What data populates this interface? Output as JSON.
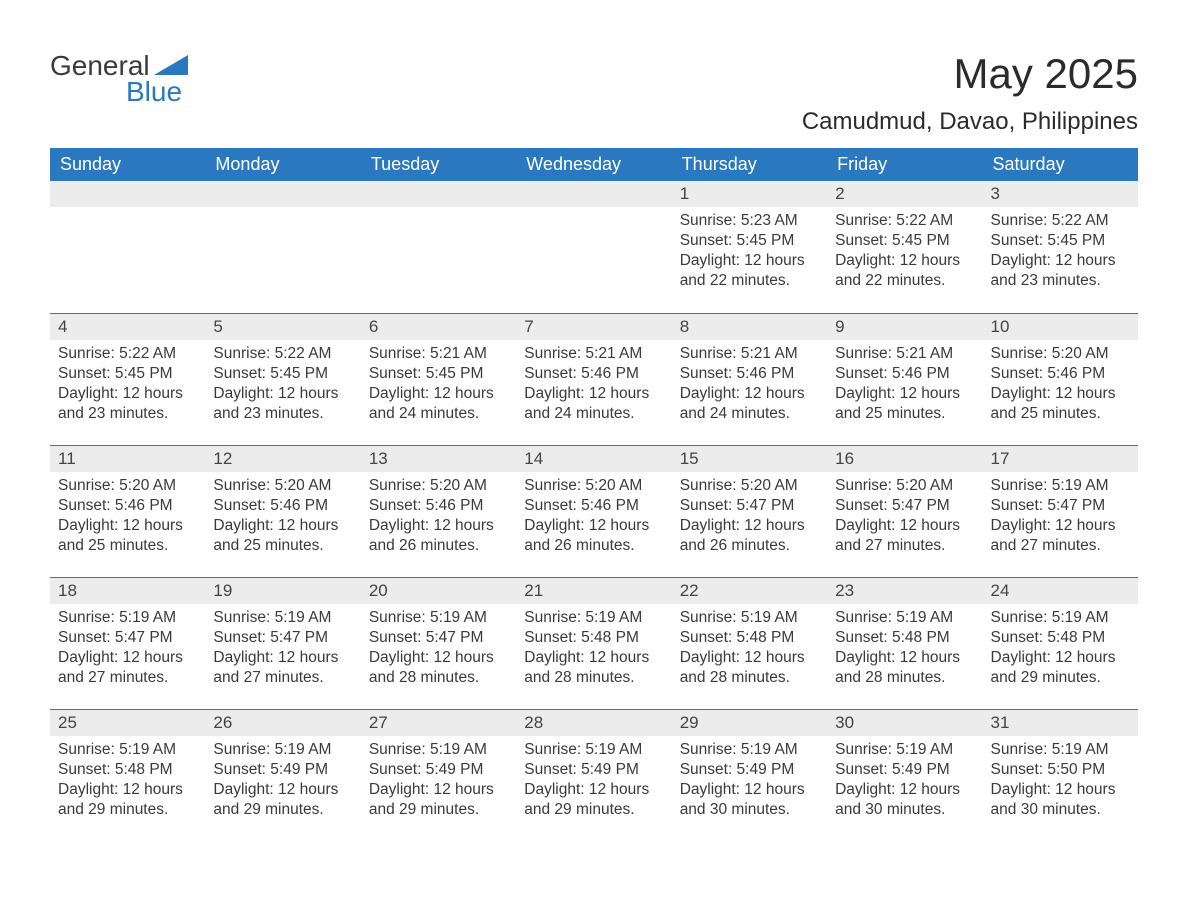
{
  "brand": {
    "word1": "General",
    "word2": "Blue",
    "accent_color": "#2a79c0"
  },
  "title": "May 2025",
  "location": "Camudmud, Davao, Philippines",
  "colors": {
    "header_bg": "#2a79c0",
    "header_text": "#ffffff",
    "daynum_bg": "#ececec",
    "text": "#3a3a3a",
    "row_border": "#2a79c0",
    "page_bg": "#ffffff"
  },
  "fonts": {
    "title_size_pt": 42,
    "location_size_pt": 24,
    "header_size_pt": 18,
    "body_size_pt": 15.5
  },
  "weekdays": [
    "Sunday",
    "Monday",
    "Tuesday",
    "Wednesday",
    "Thursday",
    "Friday",
    "Saturday"
  ],
  "weeks": [
    [
      {
        "blank": true
      },
      {
        "blank": true
      },
      {
        "blank": true
      },
      {
        "blank": true
      },
      {
        "n": "1",
        "sunrise": "Sunrise: 5:23 AM",
        "sunset": "Sunset: 5:45 PM",
        "daylight1": "Daylight: 12 hours",
        "daylight2": "and 22 minutes."
      },
      {
        "n": "2",
        "sunrise": "Sunrise: 5:22 AM",
        "sunset": "Sunset: 5:45 PM",
        "daylight1": "Daylight: 12 hours",
        "daylight2": "and 22 minutes."
      },
      {
        "n": "3",
        "sunrise": "Sunrise: 5:22 AM",
        "sunset": "Sunset: 5:45 PM",
        "daylight1": "Daylight: 12 hours",
        "daylight2": "and 23 minutes."
      }
    ],
    [
      {
        "n": "4",
        "sunrise": "Sunrise: 5:22 AM",
        "sunset": "Sunset: 5:45 PM",
        "daylight1": "Daylight: 12 hours",
        "daylight2": "and 23 minutes."
      },
      {
        "n": "5",
        "sunrise": "Sunrise: 5:22 AM",
        "sunset": "Sunset: 5:45 PM",
        "daylight1": "Daylight: 12 hours",
        "daylight2": "and 23 minutes."
      },
      {
        "n": "6",
        "sunrise": "Sunrise: 5:21 AM",
        "sunset": "Sunset: 5:45 PM",
        "daylight1": "Daylight: 12 hours",
        "daylight2": "and 24 minutes."
      },
      {
        "n": "7",
        "sunrise": "Sunrise: 5:21 AM",
        "sunset": "Sunset: 5:46 PM",
        "daylight1": "Daylight: 12 hours",
        "daylight2": "and 24 minutes."
      },
      {
        "n": "8",
        "sunrise": "Sunrise: 5:21 AM",
        "sunset": "Sunset: 5:46 PM",
        "daylight1": "Daylight: 12 hours",
        "daylight2": "and 24 minutes."
      },
      {
        "n": "9",
        "sunrise": "Sunrise: 5:21 AM",
        "sunset": "Sunset: 5:46 PM",
        "daylight1": "Daylight: 12 hours",
        "daylight2": "and 25 minutes."
      },
      {
        "n": "10",
        "sunrise": "Sunrise: 5:20 AM",
        "sunset": "Sunset: 5:46 PM",
        "daylight1": "Daylight: 12 hours",
        "daylight2": "and 25 minutes."
      }
    ],
    [
      {
        "n": "11",
        "sunrise": "Sunrise: 5:20 AM",
        "sunset": "Sunset: 5:46 PM",
        "daylight1": "Daylight: 12 hours",
        "daylight2": "and 25 minutes."
      },
      {
        "n": "12",
        "sunrise": "Sunrise: 5:20 AM",
        "sunset": "Sunset: 5:46 PM",
        "daylight1": "Daylight: 12 hours",
        "daylight2": "and 25 minutes."
      },
      {
        "n": "13",
        "sunrise": "Sunrise: 5:20 AM",
        "sunset": "Sunset: 5:46 PM",
        "daylight1": "Daylight: 12 hours",
        "daylight2": "and 26 minutes."
      },
      {
        "n": "14",
        "sunrise": "Sunrise: 5:20 AM",
        "sunset": "Sunset: 5:46 PM",
        "daylight1": "Daylight: 12 hours",
        "daylight2": "and 26 minutes."
      },
      {
        "n": "15",
        "sunrise": "Sunrise: 5:20 AM",
        "sunset": "Sunset: 5:47 PM",
        "daylight1": "Daylight: 12 hours",
        "daylight2": "and 26 minutes."
      },
      {
        "n": "16",
        "sunrise": "Sunrise: 5:20 AM",
        "sunset": "Sunset: 5:47 PM",
        "daylight1": "Daylight: 12 hours",
        "daylight2": "and 27 minutes."
      },
      {
        "n": "17",
        "sunrise": "Sunrise: 5:19 AM",
        "sunset": "Sunset: 5:47 PM",
        "daylight1": "Daylight: 12 hours",
        "daylight2": "and 27 minutes."
      }
    ],
    [
      {
        "n": "18",
        "sunrise": "Sunrise: 5:19 AM",
        "sunset": "Sunset: 5:47 PM",
        "daylight1": "Daylight: 12 hours",
        "daylight2": "and 27 minutes."
      },
      {
        "n": "19",
        "sunrise": "Sunrise: 5:19 AM",
        "sunset": "Sunset: 5:47 PM",
        "daylight1": "Daylight: 12 hours",
        "daylight2": "and 27 minutes."
      },
      {
        "n": "20",
        "sunrise": "Sunrise: 5:19 AM",
        "sunset": "Sunset: 5:47 PM",
        "daylight1": "Daylight: 12 hours",
        "daylight2": "and 28 minutes."
      },
      {
        "n": "21",
        "sunrise": "Sunrise: 5:19 AM",
        "sunset": "Sunset: 5:48 PM",
        "daylight1": "Daylight: 12 hours",
        "daylight2": "and 28 minutes."
      },
      {
        "n": "22",
        "sunrise": "Sunrise: 5:19 AM",
        "sunset": "Sunset: 5:48 PM",
        "daylight1": "Daylight: 12 hours",
        "daylight2": "and 28 minutes."
      },
      {
        "n": "23",
        "sunrise": "Sunrise: 5:19 AM",
        "sunset": "Sunset: 5:48 PM",
        "daylight1": "Daylight: 12 hours",
        "daylight2": "and 28 minutes."
      },
      {
        "n": "24",
        "sunrise": "Sunrise: 5:19 AM",
        "sunset": "Sunset: 5:48 PM",
        "daylight1": "Daylight: 12 hours",
        "daylight2": "and 29 minutes."
      }
    ],
    [
      {
        "n": "25",
        "sunrise": "Sunrise: 5:19 AM",
        "sunset": "Sunset: 5:48 PM",
        "daylight1": "Daylight: 12 hours",
        "daylight2": "and 29 minutes."
      },
      {
        "n": "26",
        "sunrise": "Sunrise: 5:19 AM",
        "sunset": "Sunset: 5:49 PM",
        "daylight1": "Daylight: 12 hours",
        "daylight2": "and 29 minutes."
      },
      {
        "n": "27",
        "sunrise": "Sunrise: 5:19 AM",
        "sunset": "Sunset: 5:49 PM",
        "daylight1": "Daylight: 12 hours",
        "daylight2": "and 29 minutes."
      },
      {
        "n": "28",
        "sunrise": "Sunrise: 5:19 AM",
        "sunset": "Sunset: 5:49 PM",
        "daylight1": "Daylight: 12 hours",
        "daylight2": "and 29 minutes."
      },
      {
        "n": "29",
        "sunrise": "Sunrise: 5:19 AM",
        "sunset": "Sunset: 5:49 PM",
        "daylight1": "Daylight: 12 hours",
        "daylight2": "and 30 minutes."
      },
      {
        "n": "30",
        "sunrise": "Sunrise: 5:19 AM",
        "sunset": "Sunset: 5:49 PM",
        "daylight1": "Daylight: 12 hours",
        "daylight2": "and 30 minutes."
      },
      {
        "n": "31",
        "sunrise": "Sunrise: 5:19 AM",
        "sunset": "Sunset: 5:50 PM",
        "daylight1": "Daylight: 12 hours",
        "daylight2": "and 30 minutes."
      }
    ]
  ]
}
